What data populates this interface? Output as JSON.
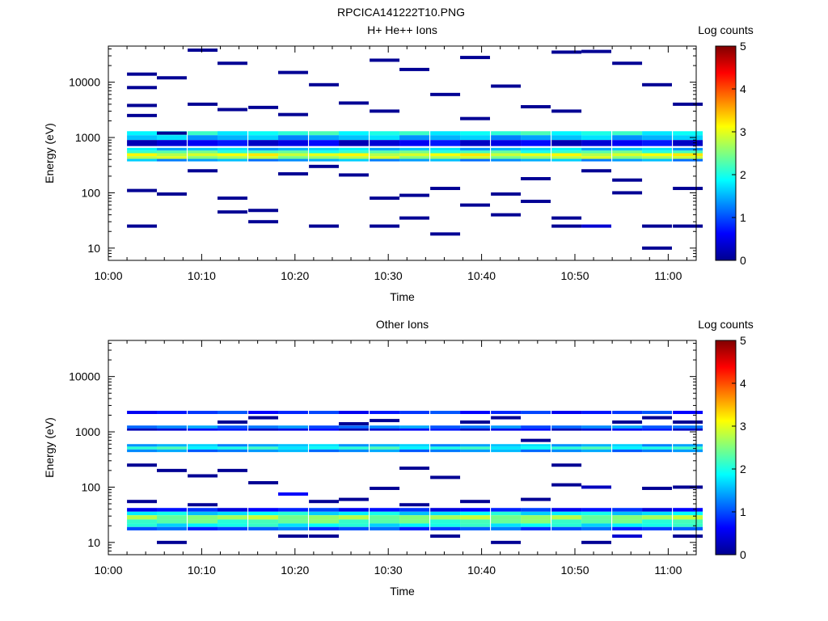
{
  "figure_title": "RPCICA141222T10.PNG",
  "chart_data": [
    {
      "type": "heatmap",
      "title": "H+ He++ Ions",
      "xlabel": "Time",
      "ylabel": "Energy (eV)",
      "x_ticks": [
        "10:00",
        "10:10",
        "10:20",
        "10:30",
        "10:40",
        "10:50",
        "11:00"
      ],
      "x_range_minutes": [
        0,
        63
      ],
      "y_scale": "log",
      "y_range": [
        6,
        45000
      ],
      "y_ticks": [
        "10",
        "100",
        "1000",
        "10000"
      ],
      "colorbar": {
        "label": "Log counts",
        "ticks": [
          "0",
          "1",
          "2",
          "3",
          "4",
          "5"
        ],
        "range": [
          0,
          5
        ]
      },
      "time_bins_start_min": [
        2,
        5.2,
        8.5,
        11.7,
        15,
        18.2,
        21.5,
        24.7,
        28,
        31.2,
        34.5,
        37.7,
        41,
        44.2,
        47.5,
        50.7,
        54,
        57.2,
        60.5
      ],
      "bands": [
        {
          "e_low": 1100,
          "e_high": 1300,
          "value": 2.0
        },
        {
          "e_low": 900,
          "e_high": 1100,
          "value": 1.5
        },
        {
          "e_low": 700,
          "e_high": 900,
          "value": 0.5
        },
        {
          "e_low": 580,
          "e_high": 650,
          "value": 1.6
        },
        {
          "e_low": 520,
          "e_high": 580,
          "value": 2.2
        },
        {
          "e_low": 460,
          "e_high": 520,
          "value": 3.0
        },
        {
          "e_low": 410,
          "e_high": 460,
          "value": 2.7
        },
        {
          "e_low": 370,
          "e_high": 410,
          "value": 1.4
        }
      ],
      "sparse_counts": [
        {
          "bin": 0,
          "e": 25,
          "value": 0.1
        },
        {
          "bin": 0,
          "e": 110,
          "value": 0.1
        },
        {
          "bin": 0,
          "e": 2500,
          "value": 0.1
        },
        {
          "bin": 0,
          "e": 3800,
          "value": 0.1
        },
        {
          "bin": 0,
          "e": 8000,
          "value": 0.1
        },
        {
          "bin": 0,
          "e": 14000,
          "value": 0.1
        },
        {
          "bin": 1,
          "e": 95,
          "value": 0.1
        },
        {
          "bin": 1,
          "e": 1200,
          "value": 0.1
        },
        {
          "bin": 1,
          "e": 12000,
          "value": 0.1
        },
        {
          "bin": 2,
          "e": 250,
          "value": 0.1
        },
        {
          "bin": 2,
          "e": 4000,
          "value": 0.1
        },
        {
          "bin": 2,
          "e": 38000,
          "value": 0.1
        },
        {
          "bin": 3,
          "e": 45,
          "value": 0.1
        },
        {
          "bin": 3,
          "e": 80,
          "value": 0.1
        },
        {
          "bin": 3,
          "e": 3200,
          "value": 0.1
        },
        {
          "bin": 3,
          "e": 22000,
          "value": 0.1
        },
        {
          "bin": 4,
          "e": 30,
          "value": 0.1
        },
        {
          "bin": 4,
          "e": 48,
          "value": 0.1
        },
        {
          "bin": 4,
          "e": 3500,
          "value": 0.1
        },
        {
          "bin": 5,
          "e": 220,
          "value": 0.1
        },
        {
          "bin": 5,
          "e": 2600,
          "value": 0.1
        },
        {
          "bin": 5,
          "e": 15000,
          "value": 0.1
        },
        {
          "bin": 6,
          "e": 25,
          "value": 0.1
        },
        {
          "bin": 6,
          "e": 300,
          "value": 0.1
        },
        {
          "bin": 6,
          "e": 9000,
          "value": 0.1
        },
        {
          "bin": 7,
          "e": 210,
          "value": 0.1
        },
        {
          "bin": 7,
          "e": 4200,
          "value": 0.1
        },
        {
          "bin": 8,
          "e": 25,
          "value": 0.1
        },
        {
          "bin": 8,
          "e": 80,
          "value": 0.1
        },
        {
          "bin": 8,
          "e": 3000,
          "value": 0.1
        },
        {
          "bin": 8,
          "e": 25000,
          "value": 0.1
        },
        {
          "bin": 9,
          "e": 35,
          "value": 0.1
        },
        {
          "bin": 9,
          "e": 90,
          "value": 0.1
        },
        {
          "bin": 9,
          "e": 17000,
          "value": 0.1
        },
        {
          "bin": 10,
          "e": 18,
          "value": 0.1
        },
        {
          "bin": 10,
          "e": 120,
          "value": 0.1
        },
        {
          "bin": 10,
          "e": 6000,
          "value": 0.1
        },
        {
          "bin": 11,
          "e": 60,
          "value": 0.1
        },
        {
          "bin": 11,
          "e": 2200,
          "value": 0.1
        },
        {
          "bin": 11,
          "e": 28000,
          "value": 0.1
        },
        {
          "bin": 12,
          "e": 40,
          "value": 0.1
        },
        {
          "bin": 12,
          "e": 95,
          "value": 0.1
        },
        {
          "bin": 12,
          "e": 8500,
          "value": 0.1
        },
        {
          "bin": 13,
          "e": 70,
          "value": 0.1
        },
        {
          "bin": 13,
          "e": 180,
          "value": 0.1
        },
        {
          "bin": 13,
          "e": 3600,
          "value": 0.1
        },
        {
          "bin": 14,
          "e": 25,
          "value": 0.1
        },
        {
          "bin": 14,
          "e": 35,
          "value": 0.1
        },
        {
          "bin": 14,
          "e": 3000,
          "value": 0.1
        },
        {
          "bin": 14,
          "e": 35000,
          "value": 0.1
        },
        {
          "bin": 15,
          "e": 25,
          "value": 0.4
        },
        {
          "bin": 15,
          "e": 250,
          "value": 0.1
        },
        {
          "bin": 15,
          "e": 36000,
          "value": 0.1
        },
        {
          "bin": 16,
          "e": 100,
          "value": 0.1
        },
        {
          "bin": 16,
          "e": 170,
          "value": 0.1
        },
        {
          "bin": 16,
          "e": 22000,
          "value": 0.1
        },
        {
          "bin": 17,
          "e": 10,
          "value": 0.1
        },
        {
          "bin": 17,
          "e": 25,
          "value": 0.1
        },
        {
          "bin": 17,
          "e": 9000,
          "value": 0.1
        },
        {
          "bin": 18,
          "e": 25,
          "value": 0.1
        },
        {
          "bin": 18,
          "e": 4000,
          "value": 0.1
        },
        {
          "bin": 18,
          "e": 120,
          "value": 0.1
        }
      ]
    },
    {
      "type": "heatmap",
      "title": "Other Ions",
      "xlabel": "Time",
      "ylabel": "Energy (eV)",
      "x_ticks": [
        "10:00",
        "10:10",
        "10:20",
        "10:30",
        "10:40",
        "10:50",
        "11:00"
      ],
      "x_range_minutes": [
        0,
        63
      ],
      "y_scale": "log",
      "y_range": [
        6,
        45000
      ],
      "y_ticks": [
        "10",
        "100",
        "1000",
        "10000"
      ],
      "colorbar": {
        "label": "Log counts",
        "ticks": [
          "0",
          "1",
          "2",
          "3",
          "4",
          "5"
        ],
        "range": [
          0,
          5
        ]
      },
      "time_bins_start_min": [
        2,
        5.2,
        8.5,
        11.7,
        15,
        18.2,
        21.5,
        24.7,
        28,
        31.2,
        34.5,
        37.7,
        41,
        44.2,
        47.5,
        50.7,
        54,
        57.2,
        60.5
      ],
      "bands": [
        {
          "e_low": 2100,
          "e_high": 2400,
          "value": 0.8
        },
        {
          "e_low": 1150,
          "e_high": 1300,
          "value": 1.2
        },
        {
          "e_low": 1050,
          "e_high": 1150,
          "value": 0.5
        },
        {
          "e_low": 540,
          "e_high": 600,
          "value": 1.5
        },
        {
          "e_low": 480,
          "e_high": 540,
          "value": 2.0
        },
        {
          "e_low": 430,
          "e_high": 480,
          "value": 1.3
        },
        {
          "e_low": 36,
          "e_high": 42,
          "value": 0.7
        },
        {
          "e_low": 31,
          "e_high": 36,
          "value": 1.8
        },
        {
          "e_low": 26,
          "e_high": 31,
          "value": 2.6
        },
        {
          "e_low": 22,
          "e_high": 26,
          "value": 2.3
        },
        {
          "e_low": 19,
          "e_high": 22,
          "value": 1.9
        },
        {
          "e_low": 16.5,
          "e_high": 19,
          "value": 1.0
        }
      ],
      "sparse_counts": [
        {
          "bin": 0,
          "e": 55,
          "value": 0.1
        },
        {
          "bin": 0,
          "e": 250,
          "value": 0.1
        },
        {
          "bin": 1,
          "e": 10,
          "value": 0.1
        },
        {
          "bin": 1,
          "e": 200,
          "value": 0.1
        },
        {
          "bin": 2,
          "e": 48,
          "value": 0.1
        },
        {
          "bin": 2,
          "e": 160,
          "value": 0.1
        },
        {
          "bin": 3,
          "e": 200,
          "value": 0.1
        },
        {
          "bin": 3,
          "e": 1500,
          "value": 0.1
        },
        {
          "bin": 4,
          "e": 120,
          "value": 0.1
        },
        {
          "bin": 4,
          "e": 1800,
          "value": 0.1
        },
        {
          "bin": 5,
          "e": 13,
          "value": 0.1
        },
        {
          "bin": 5,
          "e": 75,
          "value": 0.6
        },
        {
          "bin": 6,
          "e": 13,
          "value": 0.1
        },
        {
          "bin": 6,
          "e": 55,
          "value": 0.1
        },
        {
          "bin": 7,
          "e": 60,
          "value": 0.1
        },
        {
          "bin": 7,
          "e": 1400,
          "value": 0.1
        },
        {
          "bin": 8,
          "e": 95,
          "value": 0.1
        },
        {
          "bin": 8,
          "e": 1600,
          "value": 0.1
        },
        {
          "bin": 9,
          "e": 48,
          "value": 0.1
        },
        {
          "bin": 9,
          "e": 220,
          "value": 0.1
        },
        {
          "bin": 10,
          "e": 13,
          "value": 0.1
        },
        {
          "bin": 10,
          "e": 150,
          "value": 0.1
        },
        {
          "bin": 11,
          "e": 55,
          "value": 0.1
        },
        {
          "bin": 11,
          "e": 1500,
          "value": 0.1
        },
        {
          "bin": 12,
          "e": 10,
          "value": 0.1
        },
        {
          "bin": 12,
          "e": 1800,
          "value": 0.1
        },
        {
          "bin": 13,
          "e": 700,
          "value": 0.1
        },
        {
          "bin": 13,
          "e": 60,
          "value": 0.1
        },
        {
          "bin": 14,
          "e": 110,
          "value": 0.1
        },
        {
          "bin": 14,
          "e": 250,
          "value": 0.1
        },
        {
          "bin": 15,
          "e": 10,
          "value": 0.1
        },
        {
          "bin": 15,
          "e": 100,
          "value": 0.3
        },
        {
          "bin": 16,
          "e": 13,
          "value": 0.4
        },
        {
          "bin": 16,
          "e": 1500,
          "value": 0.1
        },
        {
          "bin": 17,
          "e": 95,
          "value": 0.1
        },
        {
          "bin": 17,
          "e": 1800,
          "value": 0.1
        },
        {
          "bin": 18,
          "e": 13,
          "value": 0.1
        },
        {
          "bin": 18,
          "e": 100,
          "value": 0.1
        },
        {
          "bin": 18,
          "e": 1500,
          "value": 0.1
        }
      ]
    }
  ]
}
